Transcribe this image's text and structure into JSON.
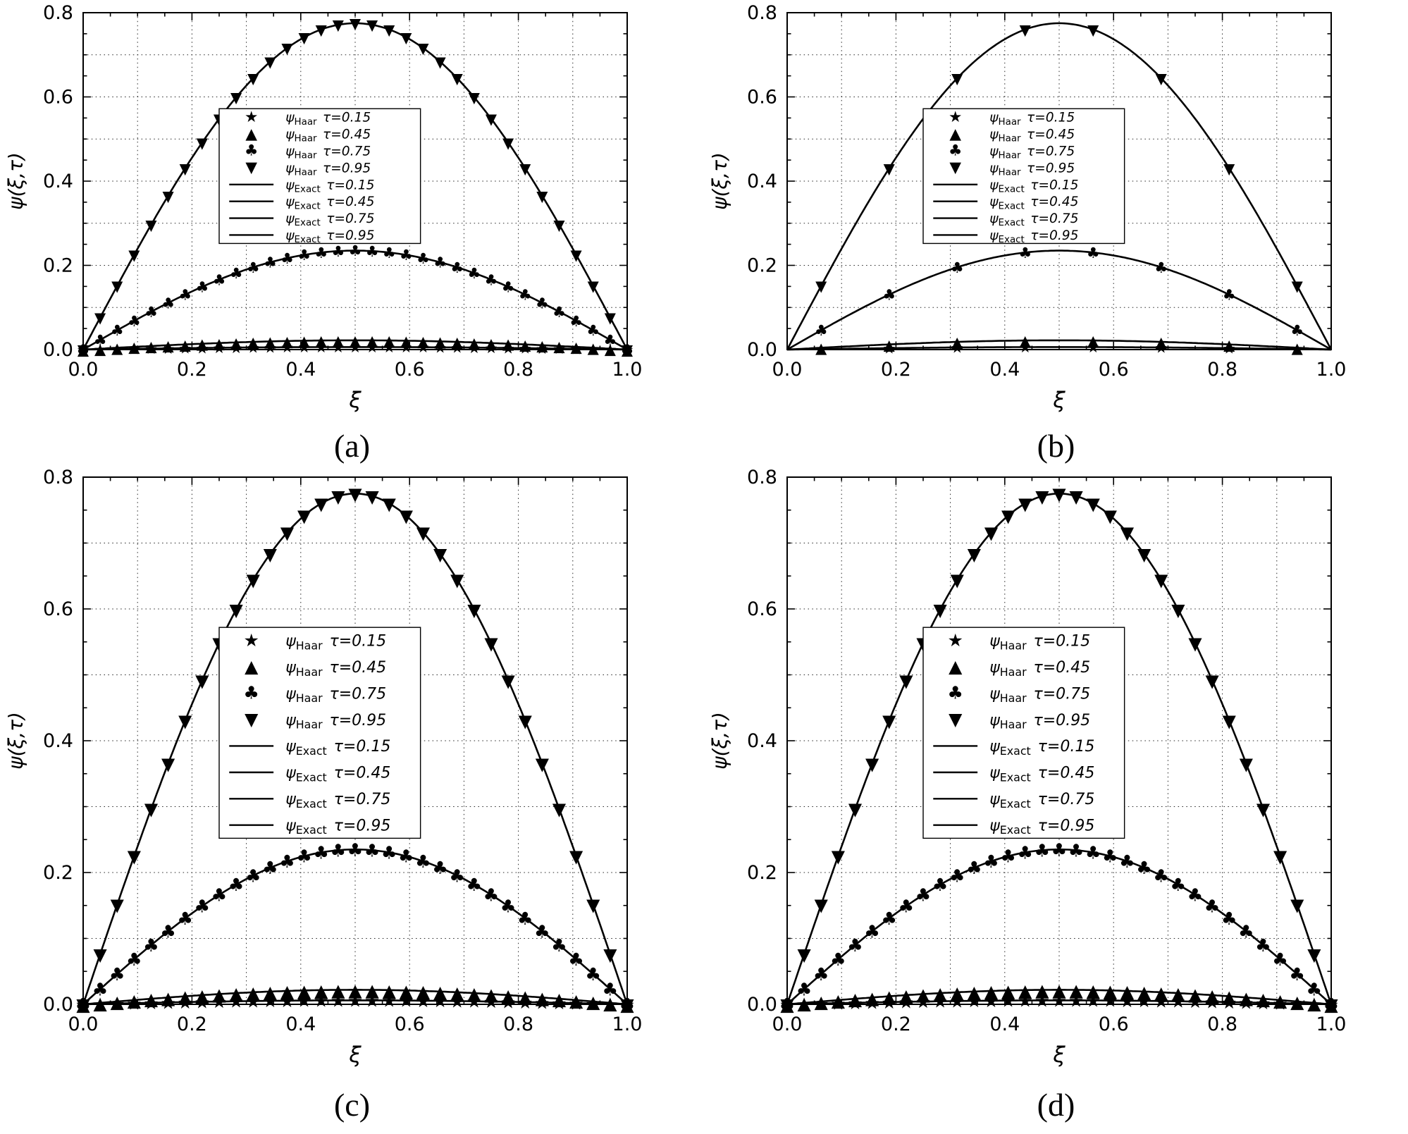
{
  "figure": {
    "background": "#ffffff",
    "ink": "#000000"
  },
  "marker_glyphs": {
    "star": "★",
    "triangle-up": "▲",
    "club": "♣",
    "triangle-down": "▼"
  },
  "axes": {
    "xlabel": "ξ",
    "ylabel": "ψ(ξ,τ)",
    "xlim": [
      0,
      1
    ],
    "ylim": [
      0,
      0.8
    ],
    "xtick_values": [
      0,
      0.2,
      0.4,
      0.6,
      0.8,
      1.0
    ],
    "xtick_labels": [
      "0.0",
      "0.2",
      "0.4",
      "0.6",
      "0.8",
      "1.0"
    ],
    "ytick_values": [
      0,
      0.2,
      0.4,
      0.6,
      0.8
    ],
    "ytick_labels": [
      "0.0",
      "0.2",
      "0.4",
      "0.6",
      "0.8"
    ],
    "grid": {
      "style": "dotted",
      "x_step": 0.1,
      "y_step": 0.1
    }
  },
  "legend": {
    "entries": [
      {
        "base": "ψ",
        "sub": "Haar",
        "tau": "τ=0.15",
        "marker": "star"
      },
      {
        "base": "ψ",
        "sub": "Haar",
        "tau": "τ=0.45",
        "marker": "triangle-up"
      },
      {
        "base": "ψ",
        "sub": "Haar",
        "tau": "τ=0.75",
        "marker": "club"
      },
      {
        "base": "ψ",
        "sub": "Haar",
        "tau": "τ=0.95",
        "marker": "triangle-down"
      },
      {
        "base": "ψ",
        "sub": "Exact",
        "tau": "τ=0.15",
        "marker": null
      },
      {
        "base": "ψ",
        "sub": "Exact",
        "tau": "τ=0.45",
        "marker": null
      },
      {
        "base": "ψ",
        "sub": "Exact",
        "tau": "τ=0.75",
        "marker": null
      },
      {
        "base": "ψ",
        "sub": "Exact",
        "tau": "τ=0.95",
        "marker": null
      }
    ]
  },
  "chart_data": [
    {
      "type": "line",
      "panel": "a",
      "panel_label": "(a)",
      "xlabel": "ξ",
      "ylabel": "ψ(ξ,τ)",
      "xlim": [
        0,
        1
      ],
      "ylim": [
        0,
        0.8
      ],
      "model": "ψ(ξ,τ) = A(τ)·sin(π·ξ)",
      "marker_x": {
        "kind": "uniform",
        "count": 33,
        "from": 0,
        "to": 1
      },
      "series": [
        {
          "name": "ψ_Haar τ=0.15",
          "style": "markers",
          "marker": "star",
          "tau": 0.15,
          "amplitude": 0.006
        },
        {
          "name": "ψ_Haar τ=0.45",
          "style": "markers",
          "marker": "triangle-up",
          "tau": 0.45,
          "amplitude": 0.022
        },
        {
          "name": "ψ_Haar τ=0.75",
          "style": "markers",
          "marker": "club",
          "tau": 0.75,
          "amplitude": 0.235
        },
        {
          "name": "ψ_Haar τ=0.95",
          "style": "markers",
          "marker": "triangle-down",
          "tau": 0.95,
          "amplitude": 0.775
        },
        {
          "name": "ψ_Exact τ=0.15",
          "style": "line",
          "tau": 0.15,
          "amplitude": 0.006
        },
        {
          "name": "ψ_Exact τ=0.45",
          "style": "line",
          "tau": 0.45,
          "amplitude": 0.022
        },
        {
          "name": "ψ_Exact τ=0.75",
          "style": "line",
          "tau": 0.75,
          "amplitude": 0.235
        },
        {
          "name": "ψ_Exact τ=0.95",
          "style": "line",
          "tau": 0.95,
          "amplitude": 0.775
        }
      ]
    },
    {
      "type": "line",
      "panel": "b",
      "panel_label": "(b)",
      "xlabel": "ξ",
      "ylabel": "ψ(ξ,τ)",
      "xlim": [
        0,
        1
      ],
      "ylim": [
        0,
        0.8
      ],
      "model": "ψ(ξ,τ) = A(τ)·sin(π·ξ)",
      "marker_x": {
        "kind": "explicit",
        "x": [
          0.0625,
          0.1875,
          0.3125,
          0.4375,
          0.5625,
          0.6875,
          0.8125,
          0.9375
        ]
      },
      "series": [
        {
          "name": "ψ_Haar τ=0.15",
          "style": "markers",
          "marker": "star",
          "tau": 0.15,
          "amplitude": 0.006
        },
        {
          "name": "ψ_Haar τ=0.45",
          "style": "markers",
          "marker": "triangle-up",
          "tau": 0.45,
          "amplitude": 0.022
        },
        {
          "name": "ψ_Haar τ=0.75",
          "style": "markers",
          "marker": "club",
          "tau": 0.75,
          "amplitude": 0.235
        },
        {
          "name": "ψ_Haar τ=0.95",
          "style": "markers",
          "marker": "triangle-down",
          "tau": 0.95,
          "amplitude": 0.775
        },
        {
          "name": "ψ_Exact τ=0.15",
          "style": "line",
          "tau": 0.15,
          "amplitude": 0.006
        },
        {
          "name": "ψ_Exact τ=0.45",
          "style": "line",
          "tau": 0.45,
          "amplitude": 0.022
        },
        {
          "name": "ψ_Exact τ=0.75",
          "style": "line",
          "tau": 0.75,
          "amplitude": 0.235
        },
        {
          "name": "ψ_Exact τ=0.95",
          "style": "line",
          "tau": 0.95,
          "amplitude": 0.775
        }
      ]
    },
    {
      "type": "line",
      "panel": "c",
      "panel_label": "(c)",
      "xlabel": "ξ",
      "ylabel": "ψ(ξ,τ)",
      "xlim": [
        0,
        1
      ],
      "ylim": [
        0,
        0.8
      ],
      "model": "ψ(ξ,τ) = A(τ)·sin(π·ξ)",
      "marker_x": {
        "kind": "uniform",
        "count": 33,
        "from": 0,
        "to": 1
      },
      "series": [
        {
          "name": "ψ_Haar τ=0.15",
          "style": "markers",
          "marker": "star",
          "tau": 0.15,
          "amplitude": 0.006
        },
        {
          "name": "ψ_Haar τ=0.45",
          "style": "markers",
          "marker": "triangle-up",
          "tau": 0.45,
          "amplitude": 0.022
        },
        {
          "name": "ψ_Haar τ=0.75",
          "style": "markers",
          "marker": "club",
          "tau": 0.75,
          "amplitude": 0.235
        },
        {
          "name": "ψ_Haar τ=0.95",
          "style": "markers",
          "marker": "triangle-down",
          "tau": 0.95,
          "amplitude": 0.775
        },
        {
          "name": "ψ_Exact τ=0.15",
          "style": "line",
          "tau": 0.15,
          "amplitude": 0.006
        },
        {
          "name": "ψ_Exact τ=0.45",
          "style": "line",
          "tau": 0.45,
          "amplitude": 0.022
        },
        {
          "name": "ψ_Exact τ=0.75",
          "style": "line",
          "tau": 0.75,
          "amplitude": 0.235
        },
        {
          "name": "ψ_Exact τ=0.95",
          "style": "line",
          "tau": 0.95,
          "amplitude": 0.775
        }
      ]
    },
    {
      "type": "line",
      "panel": "d",
      "panel_label": "(d)",
      "xlabel": "ξ",
      "ylabel": "ψ(ξ,τ)",
      "xlim": [
        0,
        1
      ],
      "ylim": [
        0,
        0.8
      ],
      "model": "ψ(ξ,τ) = A(τ)·sin(π·ξ)",
      "marker_x": {
        "kind": "uniform",
        "count": 33,
        "from": 0,
        "to": 1
      },
      "series": [
        {
          "name": "ψ_Haar τ=0.15",
          "style": "markers",
          "marker": "star",
          "tau": 0.15,
          "amplitude": 0.006
        },
        {
          "name": "ψ_Haar τ=0.45",
          "style": "markers",
          "marker": "triangle-up",
          "tau": 0.45,
          "amplitude": 0.022
        },
        {
          "name": "ψ_Haar τ=0.75",
          "style": "markers",
          "marker": "club",
          "tau": 0.75,
          "amplitude": 0.235
        },
        {
          "name": "ψ_Haar τ=0.95",
          "style": "markers",
          "marker": "triangle-down",
          "tau": 0.95,
          "amplitude": 0.775
        },
        {
          "name": "ψ_Exact τ=0.15",
          "style": "line",
          "tau": 0.15,
          "amplitude": 0.006
        },
        {
          "name": "ψ_Exact τ=0.45",
          "style": "line",
          "tau": 0.45,
          "amplitude": 0.022
        },
        {
          "name": "ψ_Exact τ=0.75",
          "style": "line",
          "tau": 0.75,
          "amplitude": 0.235
        },
        {
          "name": "ψ_Exact τ=0.95",
          "style": "line",
          "tau": 0.95,
          "amplitude": 0.775
        }
      ]
    }
  ]
}
